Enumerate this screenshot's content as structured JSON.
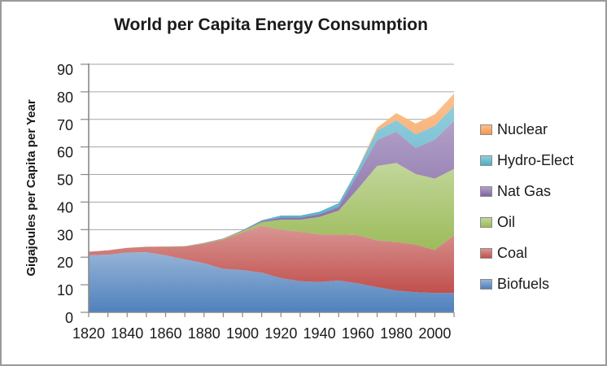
{
  "chart_data": {
    "type": "area",
    "stacked": true,
    "title": "World per Capita Energy Consumption",
    "ylabel": "Gigajoules per Capita per Year",
    "xlabel": "",
    "ylim": [
      0,
      90
    ],
    "ytick_step": 10,
    "grid": "horizontal",
    "legend_position": "right",
    "x": [
      1820,
      1830,
      1840,
      1850,
      1860,
      1870,
      1880,
      1890,
      1900,
      1910,
      1920,
      1930,
      1940,
      1950,
      1960,
      1970,
      1980,
      1990,
      2000,
      2010
    ],
    "x_tick_label_years": [
      "1820",
      "1840",
      "1860",
      "1880",
      "1900",
      "1920",
      "1940",
      "1960",
      "1980",
      "2000"
    ],
    "series": [
      {
        "name": "Biofuels",
        "color": "#4F81BD",
        "color_light": "#95B3D7",
        "values": [
          20.7,
          20.9,
          21.7,
          21.8,
          20.7,
          19.2,
          17.8,
          15.8,
          15.3,
          14.4,
          12.4,
          11.3,
          11.0,
          11.5,
          10.5,
          9.1,
          7.9,
          7.3,
          7.0,
          7.0
        ]
      },
      {
        "name": "Coal",
        "color": "#C0504D",
        "color_light": "#D99694",
        "values": [
          1.3,
          1.6,
          1.7,
          2.0,
          3.1,
          4.7,
          7.1,
          10.6,
          13.7,
          17.1,
          17.6,
          18.0,
          17.3,
          16.8,
          17.5,
          17.0,
          17.6,
          17.3,
          15.6,
          21.0
        ]
      },
      {
        "name": "Oil",
        "color": "#9BBB59",
        "color_light": "#C2D69B",
        "values": [
          0,
          0,
          0,
          0,
          0.1,
          0.1,
          0.2,
          0.3,
          0.5,
          1.2,
          3.6,
          4.3,
          6.3,
          8.6,
          16.8,
          27.0,
          28.7,
          25.6,
          25.9,
          24.0
        ]
      },
      {
        "name": "Nat Gas",
        "color": "#8064A2",
        "color_light": "#B2A1C7",
        "values": [
          0,
          0,
          0,
          0,
          0,
          0,
          0.1,
          0.1,
          0.2,
          0.4,
          0.8,
          0.8,
          1.0,
          1.4,
          5.4,
          9.4,
          11.4,
          9.4,
          14.2,
          17.5
        ]
      },
      {
        "name": "Hydro-Elect",
        "color": "#4BACC6",
        "color_light": "#92CDDC",
        "values": [
          0,
          0,
          0,
          0,
          0,
          0,
          0,
          0,
          0.1,
          0.3,
          0.7,
          0.7,
          0.9,
          1.3,
          1.9,
          3.4,
          4.1,
          5.0,
          4.9,
          5.4
        ]
      },
      {
        "name": "Nuclear",
        "color": "#F79646",
        "color_light": "#FAC090",
        "values": [
          0,
          0,
          0,
          0,
          0,
          0,
          0,
          0,
          0,
          0,
          0,
          0,
          0,
          0,
          0.1,
          1.1,
          2.6,
          3.9,
          4.2,
          4.5
        ]
      }
    ],
    "legend_order": [
      "Nuclear",
      "Hydro-Elect",
      "Nat Gas",
      "Oil",
      "Coal",
      "Biofuels"
    ],
    "axis_color": "#898989",
    "gridline_color": "#A6A6A6"
  }
}
